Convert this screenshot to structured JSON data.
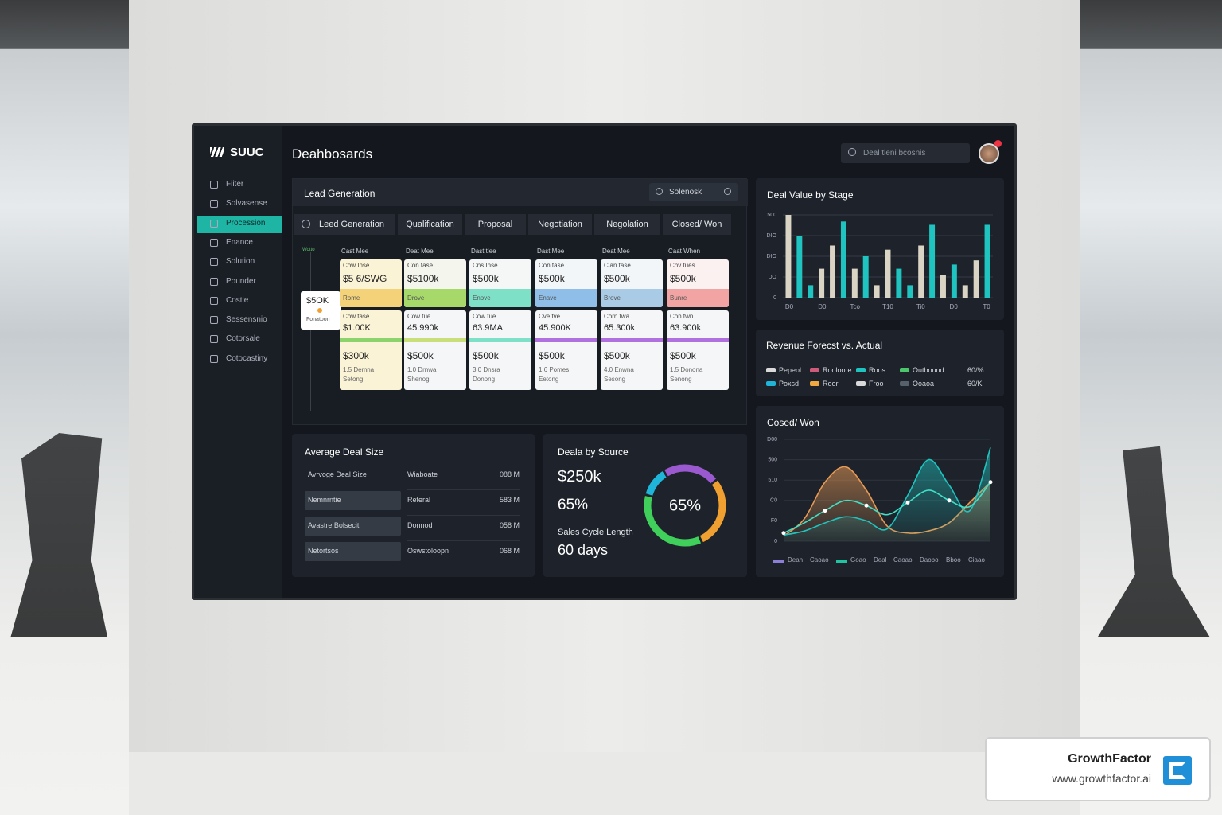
{
  "header": {
    "brand": "SUUC",
    "title": "Deahbosards",
    "search": "Deal tleni bcosnis"
  },
  "sidebar": {
    "items": [
      "Fiiter",
      "Solvasense",
      "Procession",
      "Enance",
      "Solution",
      "Pounder",
      "Costle",
      "Sessensnio",
      "Cotorsale",
      "Cotocastiny"
    ],
    "active": 2
  },
  "pipeline": {
    "title": "Lead Generation",
    "search": "Solenosk",
    "tabs": [
      "Leed Generation",
      "Qualification",
      "Proposal",
      "Negotiation",
      "Negolation",
      "Closed/ Won"
    ],
    "marker": "Wotto",
    "floating_card": {
      "value": "$5OK",
      "label": "Fonatoon"
    },
    "columns": [
      {
        "head": "Cast Mee",
        "top": {
          "label": "Cow Inse",
          "value": "$5 6/SWG",
          "tag": "Rome"
        },
        "bottom": {
          "label": "Cow tase",
          "value": "$1.00K",
          "amount": "$300k",
          "line1": "1.5 Demna",
          "line2": "Setong"
        }
      },
      {
        "head": "Deat Mee",
        "top": {
          "label": "Con tase",
          "value": "$5100k",
          "tag": "Drove"
        },
        "bottom": {
          "label": "Cow tue",
          "value": "45.990k",
          "amount": "$500k",
          "line1": "1.0 Drnwa",
          "line2": "Shenog"
        }
      },
      {
        "head": "Dast tlee",
        "top": {
          "label": "Cns Inse",
          "value": "$500k",
          "tag": "Enove"
        },
        "bottom": {
          "label": "Cow tue",
          "value": "63.9MA",
          "amount": "$500k",
          "line1": "3.0 Dnsra",
          "line2": "Donong"
        }
      },
      {
        "head": "Dast Mee",
        "top": {
          "label": "Con tase",
          "value": "$500k",
          "tag": "Enave"
        },
        "bottom": {
          "label": "Cve tve",
          "value": "45.900K",
          "amount": "$500k",
          "line1": "1.6 Pomes",
          "line2": "Eetong"
        }
      },
      {
        "head": "Deat Mee",
        "top": {
          "label": "Clan tase",
          "value": "$500k",
          "tag": "Brove"
        },
        "bottom": {
          "label": "Corn twa",
          "value": "65.300k",
          "amount": "$500k",
          "line1": "4.0 Enwna",
          "line2": "Sesong"
        }
      },
      {
        "head": "Caat When",
        "top": {
          "label": "Cnv tues",
          "value": "$500k",
          "tag": "Bunre"
        },
        "bottom": {
          "label": "Con twn",
          "value": "63.900k",
          "amount": "$500k",
          "line1": "1.5 Donona",
          "line2": "Senong"
        }
      }
    ]
  },
  "deal_value": {
    "title": "Deal Value by Stage",
    "ylim": [
      0,
      100
    ],
    "yticks": [
      {
        "value": 100,
        "label": "500"
      },
      {
        "value": 75,
        "label": "DIO"
      },
      {
        "value": 50,
        "label": "DIO"
      },
      {
        "value": 25,
        "label": "DO"
      },
      0
    ],
    "x_labels": [
      "D0",
      "D0",
      "Tco",
      "T10",
      "Ti0",
      "D0",
      "T0"
    ],
    "bars": [
      {
        "value": 100,
        "color": "#d9d4c4"
      },
      {
        "value": 75,
        "color": "#1fc4c0"
      },
      {
        "value": 15,
        "color": "#1fc4c0"
      },
      {
        "value": 35,
        "color": "#d9d4c4"
      },
      {
        "value": 63,
        "color": "#d9d4c4"
      },
      {
        "value": 92,
        "color": "#1fc4c0"
      },
      {
        "value": 35,
        "color": "#d9d4c4"
      },
      {
        "value": 50,
        "color": "#1fc4c0"
      },
      {
        "value": 15,
        "color": "#d9d4c4"
      },
      {
        "value": 58,
        "color": "#d9d4c4"
      },
      {
        "value": 35,
        "color": "#1fc4c0"
      },
      {
        "value": 15,
        "color": "#1fc4c0"
      },
      {
        "value": 63,
        "color": "#d9d4c4"
      },
      {
        "value": 88,
        "color": "#1fc4c0"
      },
      {
        "value": 27,
        "color": "#d9d4c4"
      },
      {
        "value": 40,
        "color": "#1fc4c0"
      },
      {
        "value": 15,
        "color": "#d9d4c4"
      },
      {
        "value": 45,
        "color": "#d9d4c4"
      },
      {
        "value": 88,
        "color": "#1fc4c0"
      }
    ]
  },
  "revenue": {
    "title": "Revenue Forecst vs. Actual",
    "legend": [
      [
        {
          "label": "Pepeol",
          "color": "#d9d9d9"
        },
        {
          "label": "Rooloore",
          "color": "#d05a7a"
        },
        {
          "label": "Roos",
          "color": "#1fc4c0"
        },
        {
          "label": "Outbound",
          "color": "#4cc66a"
        },
        {
          "label": "60/%"
        }
      ],
      [
        {
          "label": "Poxsd",
          "color": "#1fb5d8"
        },
        {
          "label": "Roor",
          "color": "#f0a840"
        },
        {
          "label": "Froo",
          "color": "#d9d9d9"
        },
        {
          "label": "Ooaoa",
          "color": "#56616b"
        },
        {
          "label": "60/K"
        }
      ]
    ]
  },
  "closed_won": {
    "title": "Cosed/ Won",
    "ylim": [
      0,
      100
    ],
    "yticks": [
      {
        "value": 100,
        "label": "D00"
      },
      {
        "value": 80,
        "label": "500"
      },
      {
        "value": 60,
        "label": "510"
      },
      {
        "value": 40,
        "label": "C0"
      },
      {
        "value": 20,
        "label": "F0"
      },
      0
    ],
    "series": [
      {
        "color": "#e89a55",
        "values": [
          5,
          22,
          58,
          73,
          50,
          15,
          8,
          10,
          18,
          38,
          58
        ]
      },
      {
        "color": "#1fc4c0",
        "values": [
          6,
          10,
          18,
          24,
          20,
          12,
          45,
          80,
          55,
          30,
          92
        ]
      },
      {
        "color": "#3fe0c8",
        "values": [
          8,
          18,
          30,
          40,
          35,
          26,
          38,
          50,
          40,
          34,
          58
        ]
      }
    ],
    "legend": [
      {
        "label": "Dean",
        "color": "#8b7fd8"
      },
      {
        "label": "Caoao"
      },
      {
        "label": "Goao",
        "color": "#1fc4a0"
      },
      {
        "label": "Deal"
      },
      {
        "label": "Caoao"
      },
      {
        "label": "Daobo"
      },
      {
        "label": "Bboo"
      },
      {
        "label": "Ciaao"
      }
    ]
  },
  "avg_deal": {
    "title": "Average Deal Size",
    "rows": [
      [
        "Avrvoge Deal Size",
        "Wiaboate",
        "088 M"
      ],
      [
        "Nemnrntie",
        "Referal",
        "583 M"
      ],
      [
        "Avastre Bolsecit",
        "Donnod",
        "058 M"
      ],
      [
        "Netortsos",
        "Oswstoloopn",
        "068 M"
      ]
    ]
  },
  "source": {
    "title": "Deala by Source",
    "amount": "$250k",
    "percent": "65%",
    "cycle_label": "Sales Cycle Length",
    "cycle": "60 days",
    "donut_label": "65%",
    "segments": [
      {
        "value": 12,
        "color": "#1fb5d8"
      },
      {
        "value": 23,
        "color": "#9b59d0"
      },
      {
        "value": 29,
        "color": "#f0a030"
      },
      {
        "value": 36,
        "color": "#3fcf5a"
      }
    ]
  },
  "badge": {
    "name": "GrowthFactor",
    "url": "www.growthfactor.ai"
  }
}
